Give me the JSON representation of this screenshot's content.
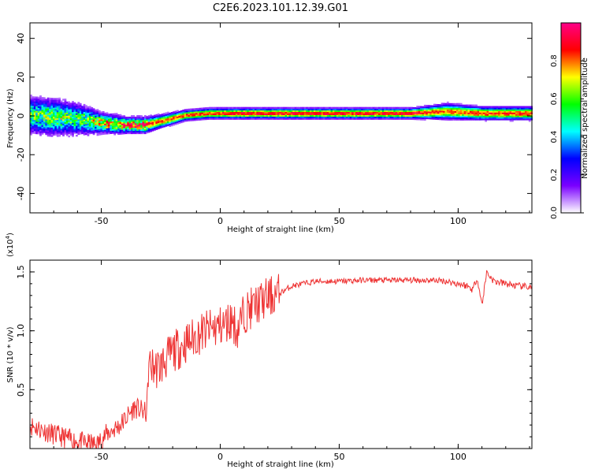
{
  "title": "C2E6.2023.101.12.39.G01",
  "chart_data": [
    {
      "type": "heatmap",
      "xlabel": "Height of straight line (km)",
      "ylabel": "Frequency (Hz)",
      "xlim": [
        -80,
        131
      ],
      "ylim": [
        -50,
        48
      ],
      "x_ticks": [
        -50,
        0,
        50,
        100
      ],
      "y_ticks": [
        -40,
        -20,
        0,
        20,
        40
      ],
      "colorbar": {
        "label": "Normalized spectral amplitude",
        "range": [
          0,
          1
        ],
        "ticks": [
          "0.0",
          "0.2",
          "0.4",
          "0.6",
          "0.8"
        ],
        "colors": [
          "#ffffff",
          "#7a00ff",
          "#0000ff",
          "#00ffff",
          "#00ff00",
          "#ffff00",
          "#ff0000",
          "#ff0088"
        ]
      },
      "ridge": [
        {
          "x": -80,
          "f": 0,
          "amp": 0.55,
          "spread": 7
        },
        {
          "x": -70,
          "f": -1,
          "amp": 0.6,
          "spread": 7
        },
        {
          "x": -60,
          "f": -2,
          "amp": 0.55,
          "spread": 6
        },
        {
          "x": -50,
          "f": -4,
          "amp": 0.7,
          "spread": 4
        },
        {
          "x": -40,
          "f": -5,
          "amp": 0.85,
          "spread": 3
        },
        {
          "x": -32,
          "f": -5,
          "amp": 0.85,
          "spread": 3
        },
        {
          "x": -25,
          "f": -3,
          "amp": 0.8,
          "spread": 2.5
        },
        {
          "x": -15,
          "f": 0,
          "amp": 0.85,
          "spread": 2
        },
        {
          "x": -5,
          "f": 1,
          "amp": 0.85,
          "spread": 2
        },
        {
          "x": 10,
          "f": 1,
          "amp": 0.9,
          "spread": 2
        },
        {
          "x": 50,
          "f": 1,
          "amp": 0.9,
          "spread": 2
        },
        {
          "x": 80,
          "f": 1,
          "amp": 0.9,
          "spread": 2
        },
        {
          "x": 95,
          "f": 2,
          "amp": 0.8,
          "spread": 3
        },
        {
          "x": 110,
          "f": 1,
          "amp": 0.85,
          "spread": 2.5
        },
        {
          "x": 131,
          "f": 1,
          "amp": 0.85,
          "spread": 2.5
        }
      ]
    },
    {
      "type": "line",
      "xlabel": "Height of straight line (km)",
      "ylabel": "SNR (10 * v/v)",
      "y_multiplier": "(x10",
      "y_multiplier_exp": "4",
      "y_multiplier_close": ")",
      "xlim": [
        -80,
        131
      ],
      "ylim": [
        0,
        1.6
      ],
      "x_ticks": [
        -50,
        0,
        50,
        100
      ],
      "y_ticks": [
        "0.5",
        "1.0",
        "1.5"
      ],
      "y_tick_values": [
        0.5,
        1.0,
        1.5
      ],
      "color": "#ee3333",
      "series": [
        {
          "x": [
            -80,
            -70,
            -60,
            -52,
            -48,
            -42,
            -36,
            -31,
            -30,
            -26,
            -20,
            -14,
            -8,
            -3,
            2,
            5,
            7,
            10,
            15,
            20,
            25,
            30,
            40,
            50,
            60,
            70,
            80,
            90,
            95,
            100,
            104,
            106,
            108,
            110,
            112,
            115,
            120,
            125,
            131
          ],
          "y": [
            0.2,
            0.12,
            0.06,
            0.03,
            0.12,
            0.2,
            0.35,
            0.3,
            0.7,
            0.68,
            0.82,
            0.9,
            0.98,
            1.02,
            1.05,
            1.1,
            1.0,
            1.15,
            1.22,
            1.28,
            1.32,
            1.38,
            1.42,
            1.42,
            1.43,
            1.43,
            1.43,
            1.43,
            1.42,
            1.4,
            1.38,
            1.35,
            1.45,
            1.22,
            1.5,
            1.42,
            1.4,
            1.38,
            1.37
          ]
        }
      ]
    }
  ]
}
